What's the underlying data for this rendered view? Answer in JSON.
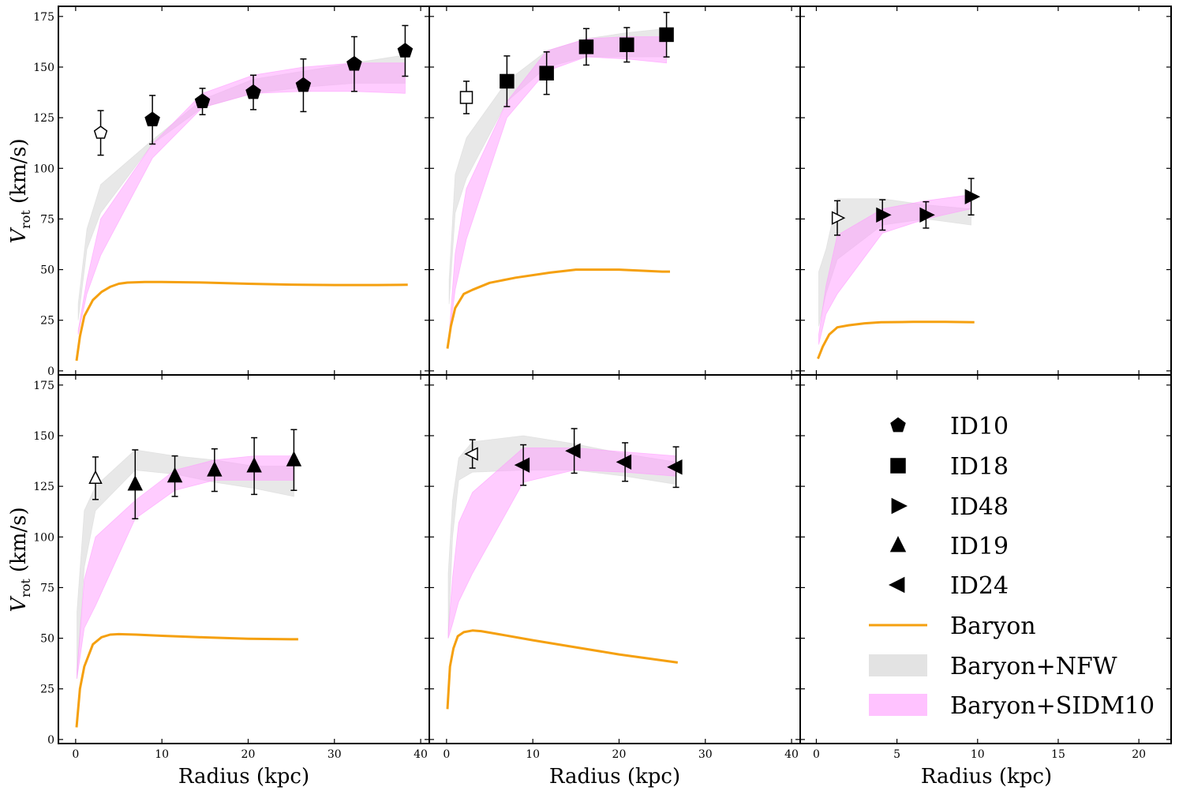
{
  "figure": {
    "x_label": "Radius (kpc)",
    "y_label_main": "V",
    "y_label_sub": "rot",
    "y_label_unit": "(km/s)"
  },
  "colors": {
    "baryon": "#f5a00f",
    "nfw_fill": "#d9d9d9",
    "sidm_fill": "#ff99ff",
    "marker": "#000000"
  },
  "legend": [
    {
      "label": "ID10",
      "marker": "pentagon-icon"
    },
    {
      "label": "ID18",
      "marker": "square-icon"
    },
    {
      "label": "ID48",
      "marker": "triangle-right-icon"
    },
    {
      "label": "ID19",
      "marker": "triangle-up-icon"
    },
    {
      "label": "ID24",
      "marker": "triangle-left-icon"
    },
    {
      "label": "Baryon",
      "marker": "orange-line-icon"
    },
    {
      "label": "Baryon+NFW",
      "marker": "gray-band-icon"
    },
    {
      "label": "Baryon+SIDM10",
      "marker": "magenta-band-icon"
    }
  ],
  "chart_data": [
    {
      "type": "line",
      "galaxy": "ID10",
      "marker": "pentagon",
      "xlim": [
        -2,
        41
      ],
      "ylim": [
        -2,
        180
      ],
      "x_ticks": [
        0,
        10,
        20,
        30,
        40
      ],
      "y_ticks": [
        0,
        25,
        50,
        75,
        100,
        125,
        150,
        175
      ],
      "show_x_tick_labels": false,
      "observed": [
        {
          "r": 2.9,
          "v": 117.5,
          "err": 11.0,
          "filled": false
        },
        {
          "r": 8.9,
          "v": 124.0,
          "err": 12.0,
          "filled": true
        },
        {
          "r": 14.7,
          "v": 133.0,
          "err": 6.5,
          "filled": true
        },
        {
          "r": 20.6,
          "v": 137.5,
          "err": 8.5,
          "filled": true
        },
        {
          "r": 26.4,
          "v": 141.0,
          "err": 13.0,
          "filled": true
        },
        {
          "r": 32.3,
          "v": 151.5,
          "err": 13.5,
          "filled": true
        },
        {
          "r": 38.2,
          "v": 158.0,
          "err": 12.5,
          "filled": true
        }
      ],
      "baryon": {
        "r": [
          0.1,
          0.5,
          1,
          2,
          3,
          4,
          5,
          6,
          8,
          10,
          15,
          20,
          25,
          30,
          35,
          38.5
        ],
        "v": [
          5,
          17,
          27,
          35,
          39,
          41.5,
          43,
          43.6,
          43.9,
          43.9,
          43.6,
          43.0,
          42.6,
          42.4,
          42.4,
          42.5
        ]
      },
      "nfw_band": {
        "r": [
          0.3,
          1.3,
          2.9,
          8.9,
          14.7,
          20.6,
          26.4,
          32.3,
          38.2
        ],
        "lo": [
          25,
          60,
          78,
          112,
          130,
          137,
          140,
          142,
          142
        ],
        "hi": [
          33,
          70,
          92,
          114,
          134,
          144,
          148,
          152,
          156
        ]
      },
      "sidm_band": {
        "r": [
          0.3,
          1.3,
          2.9,
          8.9,
          14.7,
          20.6,
          26.4,
          32.3,
          38.2
        ],
        "lo": [
          18,
          38,
          57,
          105,
          130,
          137,
          138,
          138,
          137
        ],
        "hi": [
          20,
          45,
          75,
          112,
          137,
          146,
          150,
          152,
          152
        ]
      }
    },
    {
      "type": "line",
      "galaxy": "ID18",
      "marker": "square",
      "xlim": [
        -2,
        41
      ],
      "ylim": [
        -2,
        180
      ],
      "x_ticks": [
        0,
        10,
        20,
        30,
        40
      ],
      "y_ticks": [
        0,
        25,
        50,
        75,
        100,
        125,
        150,
        175
      ],
      "show_x_tick_labels": false,
      "observed": [
        {
          "r": 2.3,
          "v": 135.0,
          "err": 8.0,
          "filled": false
        },
        {
          "r": 7.0,
          "v": 143.0,
          "err": 12.5,
          "filled": true
        },
        {
          "r": 11.6,
          "v": 147.0,
          "err": 10.5,
          "filled": true
        },
        {
          "r": 16.2,
          "v": 160.0,
          "err": 9.0,
          "filled": true
        },
        {
          "r": 20.9,
          "v": 161.0,
          "err": 8.5,
          "filled": true
        },
        {
          "r": 25.5,
          "v": 166.0,
          "err": 11.0,
          "filled": true
        }
      ],
      "baryon": {
        "r": [
          0.1,
          0.5,
          1,
          2,
          3,
          5,
          8,
          12,
          15,
          20,
          25,
          25.9
        ],
        "v": [
          11,
          22,
          31,
          38,
          40,
          43.5,
          46,
          48.5,
          50,
          50,
          49,
          49
        ]
      },
      "nfw_band": {
        "r": [
          0.3,
          1.0,
          2.3,
          7.0,
          11.6,
          16.2,
          20.9,
          25.5
        ],
        "lo": [
          33,
          78,
          95,
          133,
          150,
          155,
          155,
          155
        ],
        "hi": [
          45,
          97,
          115,
          143,
          158,
          164,
          167,
          169
        ]
      },
      "sidm_band": {
        "r": [
          0.3,
          1.0,
          2.3,
          7.0,
          11.6,
          16.2,
          20.9,
          25.5
        ],
        "lo": [
          16,
          40,
          65,
          125,
          148,
          155,
          154,
          152
        ],
        "hi": [
          18,
          58,
          90,
          133,
          158,
          164,
          165,
          165
        ]
      }
    },
    {
      "type": "line",
      "galaxy": "ID48",
      "marker": "triangle-right",
      "xlim": [
        -1,
        22
      ],
      "ylim": [
        -2,
        180
      ],
      "x_ticks": [
        0,
        5,
        10,
        15,
        20
      ],
      "y_ticks": [
        0,
        25,
        50,
        75,
        100,
        125,
        150,
        175
      ],
      "show_x_tick_labels": false,
      "observed": [
        {
          "r": 1.3,
          "v": 75.5,
          "err": 8.5,
          "filled": false
        },
        {
          "r": 4.1,
          "v": 77.0,
          "err": 7.5,
          "filled": true
        },
        {
          "r": 6.8,
          "v": 77.0,
          "err": 6.5,
          "filled": true
        },
        {
          "r": 9.6,
          "v": 86.0,
          "err": 9.0,
          "filled": true
        }
      ],
      "baryon": {
        "r": [
          0.1,
          0.4,
          0.8,
          1.3,
          2,
          3,
          4,
          6,
          8,
          9.8
        ],
        "v": [
          6,
          12,
          18,
          21.5,
          22.5,
          23.5,
          24,
          24.2,
          24.2,
          24
        ]
      },
      "nfw_band": {
        "r": [
          0.15,
          0.6,
          1.3,
          4.1,
          6.8,
          9.6
        ],
        "lo": [
          22,
          38,
          55,
          72,
          75,
          72
        ],
        "hi": [
          49,
          60,
          85,
          85,
          82,
          80
        ]
      },
      "sidm_band": {
        "r": [
          0.15,
          0.6,
          1.3,
          4.1,
          6.8,
          9.6
        ],
        "lo": [
          13,
          28,
          38,
          68,
          75,
          80
        ],
        "hi": [
          18,
          42,
          67,
          80,
          84,
          87
        ]
      }
    },
    {
      "type": "line",
      "galaxy": "ID19",
      "marker": "triangle-up",
      "xlim": [
        -2,
        41
      ],
      "ylim": [
        -2,
        180
      ],
      "x_ticks": [
        0,
        10,
        20,
        30,
        40
      ],
      "y_ticks": [
        0,
        25,
        50,
        75,
        100,
        125,
        150,
        175
      ],
      "show_x_tick_labels": true,
      "observed": [
        {
          "r": 2.3,
          "v": 129.0,
          "err": 10.5,
          "filled": false
        },
        {
          "r": 6.9,
          "v": 126.0,
          "err": 17.0,
          "filled": true
        },
        {
          "r": 11.5,
          "v": 130.0,
          "err": 10.0,
          "filled": true
        },
        {
          "r": 16.1,
          "v": 133.0,
          "err": 10.5,
          "filled": true
        },
        {
          "r": 20.7,
          "v": 135.0,
          "err": 14.0,
          "filled": true
        },
        {
          "r": 25.3,
          "v": 138.0,
          "err": 15.0,
          "filled": true
        }
      ],
      "baryon": {
        "r": [
          0.1,
          0.5,
          1,
          2,
          3,
          4,
          5,
          7,
          10,
          15,
          20,
          25,
          25.8
        ],
        "v": [
          6,
          25,
          36,
          47,
          50.5,
          51.8,
          52,
          51.8,
          51.2,
          50.4,
          49.7,
          49.5,
          49.5
        ]
      },
      "nfw_band": {
        "r": [
          0.15,
          1.0,
          2.3,
          6.9,
          11.5,
          16.1,
          20.7,
          25.3
        ],
        "lo": [
          30,
          85,
          113,
          133,
          131,
          127,
          124,
          120
        ],
        "hi": [
          63,
          113,
          125,
          143,
          140,
          138,
          135,
          135
        ]
      },
      "sidm_band": {
        "r": [
          0.15,
          1.0,
          2.3,
          6.9,
          11.5,
          16.1,
          20.7,
          25.3
        ],
        "lo": [
          30,
          55,
          66,
          109,
          123,
          128,
          128,
          128
        ],
        "hi": [
          34,
          79,
          100,
          118,
          133,
          138,
          140,
          140
        ]
      }
    },
    {
      "type": "line",
      "galaxy": "ID24",
      "marker": "triangle-left",
      "xlim": [
        -2,
        41
      ],
      "ylim": [
        -2,
        180
      ],
      "x_ticks": [
        0,
        10,
        20,
        30,
        40
      ],
      "y_ticks": [
        0,
        25,
        50,
        75,
        100,
        125,
        150,
        175
      ],
      "show_x_tick_labels": true,
      "observed": [
        {
          "r": 3.0,
          "v": 141.0,
          "err": 7.0,
          "filled": false
        },
        {
          "r": 8.9,
          "v": 135.5,
          "err": 10.0,
          "filled": true
        },
        {
          "r": 14.8,
          "v": 142.5,
          "err": 11.0,
          "filled": true
        },
        {
          "r": 20.7,
          "v": 137.0,
          "err": 9.5,
          "filled": true
        },
        {
          "r": 26.6,
          "v": 134.5,
          "err": 10.0,
          "filled": true
        }
      ],
      "baryon": {
        "r": [
          0.1,
          0.4,
          0.8,
          1.3,
          2,
          3,
          4,
          6,
          10,
          15,
          20,
          26.8
        ],
        "v": [
          15,
          36,
          45,
          51,
          53,
          53.8,
          53.5,
          52,
          49,
          45.5,
          42,
          38
        ]
      },
      "nfw_band": {
        "r": [
          0.2,
          0.7,
          1.4,
          3.0,
          8.9,
          14.8,
          20.7,
          26.6
        ],
        "lo": [
          50,
          100,
          128,
          132,
          133,
          133,
          130,
          126
        ],
        "hi": [
          82,
          118,
          139,
          147,
          150,
          146,
          141,
          137
        ]
      },
      "sidm_band": {
        "r": [
          0.2,
          0.7,
          1.4,
          3.0,
          8.9,
          14.8,
          20.7,
          26.6
        ],
        "lo": [
          50,
          57,
          68,
          82,
          127,
          133,
          132,
          130
        ],
        "hi": [
          53,
          80,
          107,
          122,
          144,
          144,
          142,
          140
        ]
      }
    }
  ]
}
